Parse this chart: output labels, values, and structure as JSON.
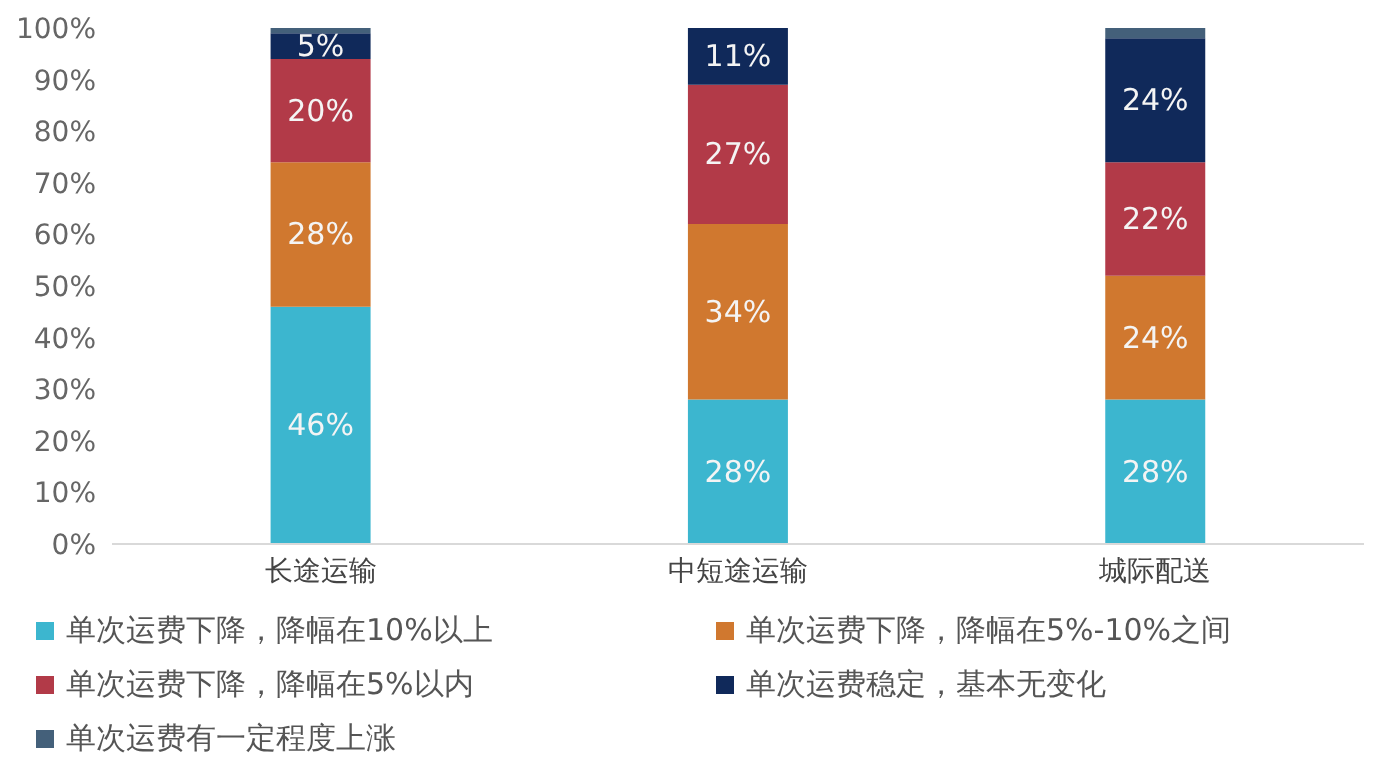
{
  "chart_data": {
    "type": "bar",
    "stacked": true,
    "categories": [
      "长途运输",
      "中短途运输",
      "城际配送"
    ],
    "series": [
      {
        "name": "单次运费下降，降幅在10%以上",
        "color": "#3cb6cf",
        "values": [
          46,
          28,
          28
        ],
        "value_labels": [
          "46%",
          "28%",
          "28%"
        ]
      },
      {
        "name": "单次运费下降，降幅在5%-10%之间",
        "color": "#d0782f",
        "values": [
          28,
          34,
          24
        ],
        "value_labels": [
          "28%",
          "34%",
          "24%"
        ]
      },
      {
        "name": "单次运费下降，降幅在5%以内",
        "color": "#b23a48",
        "values": [
          20,
          27,
          22
        ],
        "value_labels": [
          "20%",
          "27%",
          "22%"
        ]
      },
      {
        "name": "单次运费稳定，基本无变化",
        "color": "#10295a",
        "values": [
          5,
          11,
          24
        ],
        "value_labels": [
          "5%",
          "11%",
          "24%"
        ]
      },
      {
        "name": "单次运费有一定程度上涨",
        "color": "#44607a",
        "values": [
          1,
          0,
          2
        ],
        "value_labels": [
          null,
          null,
          null
        ]
      }
    ],
    "ylim": [
      0,
      100
    ],
    "yticks": [
      {
        "value": 0,
        "label": "0%"
      },
      {
        "value": 10,
        "label": "10%"
      },
      {
        "value": 20,
        "label": "20%"
      },
      {
        "value": 30,
        "label": "30%"
      },
      {
        "value": 40,
        "label": "40%"
      },
      {
        "value": 50,
        "label": "50%"
      },
      {
        "value": 60,
        "label": "60%"
      },
      {
        "value": 70,
        "label": "70%"
      },
      {
        "value": 80,
        "label": "80%"
      },
      {
        "value": 90,
        "label": "90%"
      },
      {
        "value": 100,
        "label": "100%"
      }
    ],
    "grid": false,
    "legend": "bottom"
  }
}
